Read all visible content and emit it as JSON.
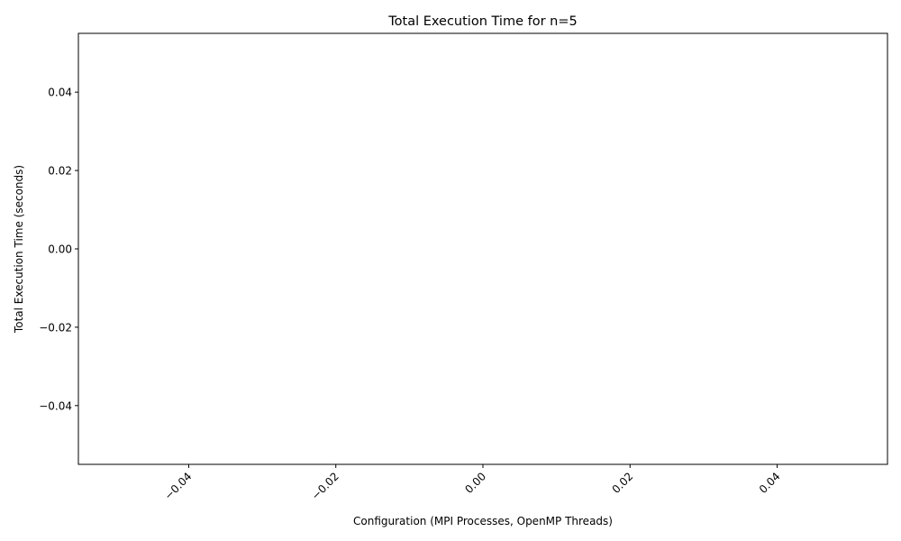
{
  "chart_data": {
    "type": "bar",
    "title": "Total Execution Time for n=5",
    "xlabel": "Configuration (MPI Processes, OpenMP Threads)",
    "ylabel": "Total Execution Time (seconds)",
    "categories": [],
    "values": [],
    "xlim": [
      -0.055,
      0.055
    ],
    "ylim": [
      -0.055,
      0.055
    ],
    "x_ticks": [
      "−0.04",
      "−0.02",
      "0.00",
      "0.02",
      "0.04"
    ],
    "x_tick_values": [
      -0.04,
      -0.02,
      0.0,
      0.02,
      0.04
    ],
    "y_ticks": [
      "−0.04",
      "−0.02",
      "0.00",
      "0.02",
      "0.04"
    ],
    "y_tick_values": [
      -0.04,
      -0.02,
      0.0,
      0.02,
      0.04
    ],
    "x_tick_rotation_deg": 45,
    "grid": false,
    "legend": "none"
  }
}
